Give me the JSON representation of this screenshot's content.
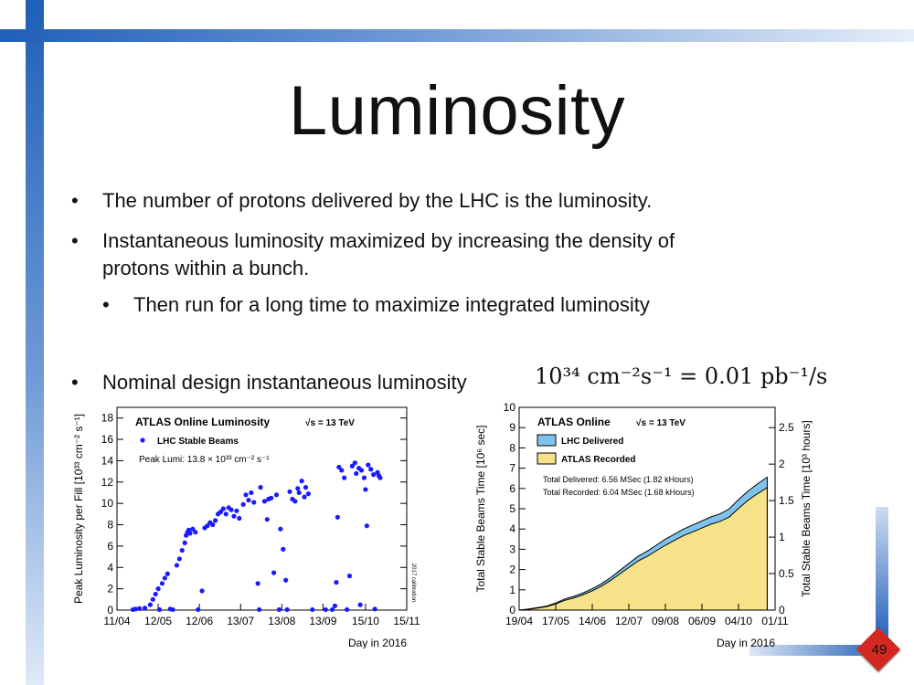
{
  "slide": {
    "title": "Luminosity",
    "bullets": [
      "The number of protons delivered by the LHC is the luminosity.",
      "Instantaneous luminosity maximized by increasing the density of",
      "protons within a bunch.",
      "Then run for a long time to maximize integrated luminosity",
      "Nominal design instantaneous luminosity"
    ],
    "bullet_symbol": "•",
    "formula": "10³⁴ cm⁻²s⁻¹ = 0.01 pb⁻¹/s",
    "page_number": "49"
  },
  "chart_data": [
    {
      "type": "scatter",
      "title": "ATLAS Online Luminosity",
      "energy": "√s = 13 TeV",
      "legend": [
        "LHC Stable Beams"
      ],
      "annotation": "Peak Lumi: 13.8 × 10³³ cm⁻² s⁻¹",
      "side_note": "2017 calibration",
      "xlabel": "Day in 2016",
      "ylabel": "Peak Luminosity per Fill [10³³ cm⁻² s⁻¹]",
      "xticks": [
        "11/04",
        "12/05",
        "12/06",
        "13/07",
        "13/08",
        "13/09",
        "15/10",
        "15/11"
      ],
      "yticks": [
        "0",
        "2",
        "4",
        "6",
        "8",
        "10",
        "12",
        "14",
        "16",
        "18"
      ],
      "ylim": [
        0,
        19
      ],
      "color": "#1a1aff",
      "series": [
        {
          "name": "LHC Stable Beams",
          "points": [
            [
              "2016-04-23",
              0.05
            ],
            [
              "2016-04-25",
              0.1
            ],
            [
              "2016-04-28",
              0.15
            ],
            [
              "2016-05-02",
              0.2
            ],
            [
              "2016-05-06",
              0.5
            ],
            [
              "2016-05-08",
              1.0
            ],
            [
              "2016-05-10",
              1.5
            ],
            [
              "2016-05-12",
              2.0
            ],
            [
              "2016-05-13",
              0.05
            ],
            [
              "2016-05-15",
              2.5
            ],
            [
              "2016-05-17",
              3.0
            ],
            [
              "2016-05-19",
              3.4
            ],
            [
              "2016-05-21",
              0.1
            ],
            [
              "2016-05-23",
              0.05
            ],
            [
              "2016-05-26",
              4.2
            ],
            [
              "2016-05-28",
              4.8
            ],
            [
              "2016-05-30",
              5.6
            ],
            [
              "2016-06-01",
              6.3
            ],
            [
              "2016-06-02",
              7.0
            ],
            [
              "2016-06-03",
              7.3
            ],
            [
              "2016-06-04",
              7.5
            ],
            [
              "2016-06-05",
              7.2
            ],
            [
              "2016-06-07",
              7.6
            ],
            [
              "2016-06-09",
              7.3
            ],
            [
              "2016-06-11",
              0.05
            ],
            [
              "2016-06-14",
              1.8
            ],
            [
              "2016-06-16",
              7.7
            ],
            [
              "2016-06-18",
              7.9
            ],
            [
              "2016-06-20",
              8.2
            ],
            [
              "2016-06-22",
              8.0
            ],
            [
              "2016-06-24",
              8.4
            ],
            [
              "2016-06-26",
              9.0
            ],
            [
              "2016-06-28",
              9.2
            ],
            [
              "2016-06-30",
              9.5
            ],
            [
              "2016-07-02",
              9.0
            ],
            [
              "2016-07-04",
              9.6
            ],
            [
              "2016-07-06",
              9.4
            ],
            [
              "2016-07-08",
              8.8
            ],
            [
              "2016-07-10",
              9.3
            ],
            [
              "2016-07-12",
              8.6
            ],
            [
              "2016-07-15",
              9.9
            ],
            [
              "2016-07-17",
              10.8
            ],
            [
              "2016-07-19",
              10.3
            ],
            [
              "2016-07-21",
              11.0
            ],
            [
              "2016-07-23",
              10.1
            ],
            [
              "2016-07-26",
              2.5
            ],
            [
              "2016-07-27",
              0.05
            ],
            [
              "2016-07-28",
              11.5
            ],
            [
              "2016-07-31",
              10.2
            ],
            [
              "2016-08-02",
              8.5
            ],
            [
              "2016-08-03",
              10.4
            ],
            [
              "2016-08-05",
              10.5
            ],
            [
              "2016-08-07",
              3.5
            ],
            [
              "2016-08-09",
              10.8
            ],
            [
              "2016-08-11",
              0.05
            ],
            [
              "2016-08-12",
              7.6
            ],
            [
              "2016-08-14",
              5.7
            ],
            [
              "2016-08-16",
              2.8
            ],
            [
              "2016-08-17",
              0.05
            ],
            [
              "2016-08-19",
              11.1
            ],
            [
              "2016-08-21",
              10.4
            ],
            [
              "2016-08-23",
              10.2
            ],
            [
              "2016-08-25",
              11.4
            ],
            [
              "2016-08-26",
              11.0
            ],
            [
              "2016-08-28",
              12.1
            ],
            [
              "2016-08-30",
              10.6
            ],
            [
              "2016-08-31",
              11.5
            ],
            [
              "2016-09-02",
              10.9
            ],
            [
              "2016-09-05",
              0.05
            ],
            [
              "2016-09-15",
              0.05
            ],
            [
              "2016-09-20",
              0.05
            ],
            [
              "2016-09-22",
              0.4
            ],
            [
              "2016-09-23",
              2.6
            ],
            [
              "2016-09-24",
              8.7
            ],
            [
              "2016-09-25",
              13.4
            ],
            [
              "2016-09-27",
              13.1
            ],
            [
              "2016-09-29",
              12.4
            ],
            [
              "2016-10-01",
              0.05
            ],
            [
              "2016-10-03",
              3.2
            ],
            [
              "2016-10-05",
              13.5
            ],
            [
              "2016-10-07",
              13.8
            ],
            [
              "2016-10-08",
              12.8
            ],
            [
              "2016-10-10",
              13.3
            ],
            [
              "2016-10-11",
              0.5
            ],
            [
              "2016-10-12",
              13.1
            ],
            [
              "2016-10-14",
              12.4
            ],
            [
              "2016-10-15",
              11.3
            ],
            [
              "2016-10-16",
              7.9
            ],
            [
              "2016-10-17",
              13.6
            ],
            [
              "2016-10-19",
              13.2
            ],
            [
              "2016-10-21",
              12.7
            ],
            [
              "2016-10-22",
              0.1
            ],
            [
              "2016-10-24",
              12.9
            ],
            [
              "2016-10-25",
              12.6
            ],
            [
              "2016-10-26",
              12.4
            ]
          ]
        }
      ]
    },
    {
      "type": "area",
      "title": "ATLAS Online",
      "energy": "√s = 13 TeV",
      "legend": [
        "LHC Delivered",
        "ATLAS Recorded"
      ],
      "annotations": [
        "Total Delivered: 6.56 MSec (1.82 kHours)",
        "Total Recorded: 6.04 MSec (1.68 kHours)"
      ],
      "xlabel": "Day in 2016",
      "ylabel": "Total Stable Beams Time [10⁶ sec]",
      "ylabel_right": "Total Stable Beams Time [10³ hours]",
      "xticks": [
        "19/04",
        "17/05",
        "14/06",
        "12/07",
        "09/08",
        "06/09",
        "04/10",
        "01/11"
      ],
      "yticks": [
        "0",
        "1",
        "2",
        "3",
        "4",
        "5",
        "6",
        "7",
        "8",
        "9",
        "10"
      ],
      "yticks_right": [
        "0",
        "0.5",
        "1",
        "1.5",
        "2",
        "2.5"
      ],
      "ylim": [
        0,
        10
      ],
      "colors": {
        "delivered": "#7fc2ee",
        "recorded": "#f6e288"
      },
      "series": [
        {
          "name": "LHC Delivered",
          "x": [
            "2016-04-19",
            "2016-04-26",
            "2016-05-03",
            "2016-05-10",
            "2016-05-17",
            "2016-05-24",
            "2016-05-31",
            "2016-06-07",
            "2016-06-14",
            "2016-06-21",
            "2016-06-28",
            "2016-07-05",
            "2016-07-12",
            "2016-07-19",
            "2016-07-26",
            "2016-08-02",
            "2016-08-09",
            "2016-08-16",
            "2016-08-23",
            "2016-08-30",
            "2016-09-06",
            "2016-09-13",
            "2016-09-20",
            "2016-09-27",
            "2016-10-04",
            "2016-10-11",
            "2016-10-18",
            "2016-10-26"
          ],
          "values": [
            0.0,
            0.05,
            0.12,
            0.2,
            0.35,
            0.55,
            0.68,
            0.85,
            1.05,
            1.3,
            1.6,
            1.95,
            2.3,
            2.65,
            2.9,
            3.2,
            3.5,
            3.75,
            4.0,
            4.2,
            4.4,
            4.6,
            4.75,
            5.0,
            5.45,
            5.85,
            6.2,
            6.56
          ]
        },
        {
          "name": "ATLAS Recorded",
          "x": [
            "2016-04-19",
            "2016-04-26",
            "2016-05-03",
            "2016-05-10",
            "2016-05-17",
            "2016-05-24",
            "2016-05-31",
            "2016-06-07",
            "2016-06-14",
            "2016-06-21",
            "2016-06-28",
            "2016-07-05",
            "2016-07-12",
            "2016-07-19",
            "2016-07-26",
            "2016-08-02",
            "2016-08-09",
            "2016-08-16",
            "2016-08-23",
            "2016-08-30",
            "2016-09-06",
            "2016-09-13",
            "2016-09-20",
            "2016-09-27",
            "2016-10-04",
            "2016-10-11",
            "2016-10-18",
            "2016-10-26"
          ],
          "values": [
            0.0,
            0.04,
            0.1,
            0.17,
            0.3,
            0.48,
            0.6,
            0.76,
            0.95,
            1.18,
            1.46,
            1.78,
            2.1,
            2.42,
            2.65,
            2.93,
            3.2,
            3.44,
            3.68,
            3.86,
            4.05,
            4.24,
            4.38,
            4.6,
            5.02,
            5.4,
            5.72,
            6.04
          ]
        }
      ]
    }
  ]
}
